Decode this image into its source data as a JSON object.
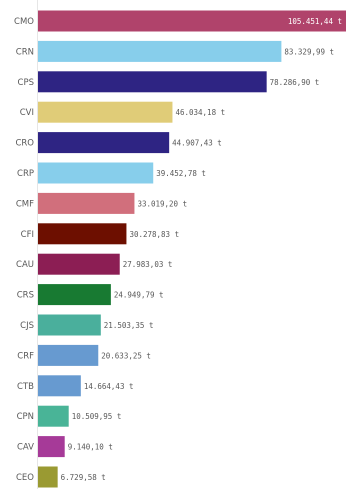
{
  "chart_data": {
    "type": "bar",
    "orientation": "horizontal",
    "categories": [
      "CMO",
      "CRN",
      "CPS",
      "CVI",
      "CRO",
      "CRP",
      "CMF",
      "CFI",
      "CAU",
      "CRS",
      "CJS",
      "CRF",
      "CTB",
      "CPN",
      "CAV",
      "CEO"
    ],
    "values": [
      105451.44,
      83329.99,
      78286.9,
      46034.18,
      44907.43,
      39452.78,
      33019.2,
      30278.83,
      27983.03,
      24949.79,
      21503.35,
      20633.25,
      14664.43,
      10509.95,
      9140.1,
      6729.58
    ],
    "value_labels": [
      "105.451,44 t",
      "83.329,99 t",
      "78.286,90 t",
      "46.034,18 t",
      "44.907,43 t",
      "39.452,78 t",
      "33.019,20 t",
      "30.278,83 t",
      "27.983,03 t",
      "24.949,79 t",
      "21.503,35 t",
      "20.633,25 t",
      "14.664,43 t",
      "10.509,95 t",
      "9.140,10 t",
      "6.729,58 t"
    ],
    "colors": [
      "#b0436b",
      "#87ceeb",
      "#2e2483",
      "#e0cc78",
      "#2e2483",
      "#87ceeb",
      "#d16f7c",
      "#6d0f00",
      "#8c1e54",
      "#187a32",
      "#4aaf9c",
      "#679ad0",
      "#679ad0",
      "#49b497",
      "#a63a98",
      "#9a9a32"
    ],
    "xlim": [
      0,
      105451.44
    ],
    "grid": false,
    "legend": "none"
  }
}
